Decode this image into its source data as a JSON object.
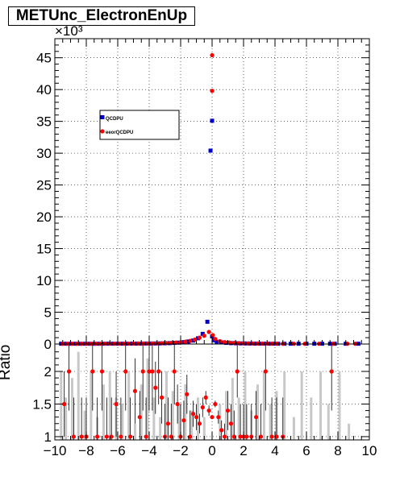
{
  "title": "METUnc_ElectronEnUp",
  "colors": {
    "qcd": "#0000cc",
    "eeor": "#ff0000",
    "ratio_bar": "#c8c8c8",
    "axis": "#000000"
  },
  "chart_data": [
    {
      "type": "scatter",
      "title": "METUnc_ElectronEnUp",
      "exponent_label": "×10³",
      "xlim": [
        -10,
        10
      ],
      "ylim": [
        0,
        48
      ],
      "grid": true,
      "y_ticks": [
        0,
        5,
        10,
        15,
        20,
        25,
        30,
        35,
        40,
        45
      ],
      "legend": {
        "placement": "top-left",
        "entries": [
          "QCDPU",
          "eeorQCDPU"
        ]
      },
      "series": [
        {
          "name": "QCDPU",
          "marker": "square",
          "x": [
            -9.6,
            -9.3,
            -9.0,
            -8.7,
            -8.4,
            -8.1,
            -7.8,
            -7.5,
            -7.2,
            -6.9,
            -6.6,
            -6.3,
            -6.0,
            -5.7,
            -5.4,
            -5.1,
            -4.8,
            -4.5,
            -4.2,
            -3.9,
            -3.6,
            -3.3,
            -3.0,
            -2.7,
            -2.4,
            -2.1,
            -1.8,
            -1.5,
            -1.2,
            -0.9,
            -0.6,
            -0.3,
            -0.1,
            0.0,
            0.0,
            0.1,
            0.3,
            0.6,
            0.9,
            1.2,
            1.5,
            1.8,
            2.1,
            2.4,
            2.7,
            3.0,
            3.3,
            3.6,
            3.9,
            4.2,
            4.6,
            5.0,
            5.5,
            6.0,
            6.5,
            7.0,
            7.5,
            7.8,
            8.5,
            9.3
          ],
          "y": [
            0.05,
            0.05,
            0.05,
            0.05,
            0.05,
            0.05,
            0.05,
            0.05,
            0.05,
            0.05,
            0.06,
            0.06,
            0.06,
            0.06,
            0.06,
            0.07,
            0.07,
            0.07,
            0.08,
            0.08,
            0.09,
            0.1,
            0.12,
            0.14,
            0.18,
            0.22,
            0.3,
            0.4,
            0.55,
            0.9,
            1.6,
            3.5,
            30.4,
            35.1,
            1.2,
            0.6,
            0.35,
            0.25,
            0.18,
            0.14,
            0.12,
            0.1,
            0.09,
            0.08,
            0.07,
            0.07,
            0.06,
            0.06,
            0.06,
            0.05,
            0.05,
            0.05,
            0.05,
            0.05,
            0.05,
            0.05,
            0.05,
            0.05,
            0.05,
            0.05
          ]
        },
        {
          "name": "eeorQCDPU",
          "marker": "circle",
          "x": [
            -9.5,
            -9.2,
            -8.9,
            -8.6,
            -8.3,
            -8.0,
            -7.7,
            -7.4,
            -7.1,
            -6.8,
            -6.5,
            -6.2,
            -5.9,
            -5.6,
            -5.3,
            -5.0,
            -4.7,
            -4.4,
            -4.1,
            -3.8,
            -3.5,
            -3.2,
            -2.9,
            -2.6,
            -2.3,
            -2.0,
            -1.7,
            -1.4,
            -1.1,
            -0.8,
            -0.5,
            -0.2,
            0.0,
            0.0,
            0.05,
            0.2,
            0.5,
            0.8,
            1.1,
            1.4,
            1.7,
            2.0,
            2.3,
            2.6,
            2.9,
            3.2,
            3.5,
            3.8,
            4.1,
            4.5,
            5.2,
            5.9,
            6.8,
            7.7,
            8.6,
            9.1
          ],
          "y": [
            0.05,
            0.05,
            0.05,
            0.05,
            0.05,
            0.05,
            0.05,
            0.05,
            0.05,
            0.06,
            0.06,
            0.06,
            0.06,
            0.06,
            0.07,
            0.07,
            0.08,
            0.08,
            0.09,
            0.1,
            0.11,
            0.13,
            0.15,
            0.18,
            0.22,
            0.28,
            0.36,
            0.5,
            0.7,
            1.0,
            1.3,
            1.9,
            39.8,
            45.4,
            1.4,
            0.8,
            0.45,
            0.3,
            0.22,
            0.17,
            0.14,
            0.12,
            0.1,
            0.09,
            0.08,
            0.07,
            0.07,
            0.06,
            0.06,
            0.05,
            0.05,
            0.05,
            0.05,
            0.05,
            0.05,
            0.05
          ]
        }
      ]
    },
    {
      "type": "scatter",
      "ylabel": "Ratio",
      "xlim": [
        -10,
        10
      ],
      "ylim": [
        0.95,
        2.42
      ],
      "grid": true,
      "x_ticks": [
        -10,
        -8,
        -6,
        -4,
        -2,
        0,
        2,
        4,
        6,
        8,
        10
      ],
      "y_ticks": [
        1,
        1.5,
        2
      ],
      "points": {
        "x": [
          -9.4,
          -9.1,
          -8.8,
          -8.3,
          -8.0,
          -7.6,
          -7.3,
          -7.0,
          -6.7,
          -6.4,
          -6.1,
          -5.8,
          -5.5,
          -5.2,
          -4.9,
          -4.6,
          -4.4,
          -4.2,
          -4.0,
          -3.8,
          -3.6,
          -3.4,
          -3.2,
          -3.0,
          -2.8,
          -2.6,
          -2.4,
          -2.2,
          -2.0,
          -1.8,
          -1.6,
          -1.4,
          -1.2,
          -1.0,
          -0.8,
          -0.6,
          -0.4,
          -0.2,
          0.0,
          0.2,
          0.4,
          0.6,
          0.8,
          1.0,
          1.2,
          1.4,
          1.6,
          1.8,
          2.0,
          2.2,
          2.5,
          2.8,
          3.1,
          3.4,
          3.8,
          4.1,
          4.5,
          7.6
        ],
        "y": [
          1.5,
          2.0,
          1.0,
          1.0,
          1.0,
          2.0,
          1.0,
          2.0,
          1.0,
          1.0,
          1.5,
          1.0,
          2.0,
          1.0,
          1.7,
          1.3,
          2.0,
          1.0,
          2.0,
          2.0,
          1.75,
          2.0,
          1.6,
          1.0,
          1.2,
          1.0,
          2.0,
          1.5,
          1.0,
          1.25,
          1.65,
          1.0,
          1.35,
          1.3,
          1.2,
          1.45,
          1.6,
          1.4,
          1.3,
          1.5,
          1.3,
          1.1,
          1.0,
          1.4,
          1.2,
          1.0,
          2.0,
          1.0,
          1.0,
          1.0,
          1.0,
          1.3,
          1.0,
          2.0,
          1.0,
          1.0,
          1.0,
          2.0
        ],
        "err": [
          0.5,
          0.6,
          0.6,
          0.6,
          0.6,
          0.6,
          0.6,
          0.6,
          0.6,
          0.6,
          0.5,
          0.6,
          0.6,
          0.6,
          0.5,
          0.4,
          0.6,
          0.6,
          0.6,
          0.6,
          0.4,
          0.5,
          0.4,
          0.5,
          0.4,
          0.5,
          0.5,
          0.3,
          0.5,
          0.3,
          0.3,
          0.4,
          0.2,
          0.2,
          0.15,
          0.15,
          0.1,
          0.08,
          0.02,
          0.05,
          0.1,
          0.15,
          0.2,
          0.3,
          0.3,
          0.4,
          0.4,
          0.5,
          0.5,
          0.5,
          0.5,
          0.4,
          0.5,
          0.6,
          0.6,
          0.6,
          0.6,
          0.6
        ]
      },
      "bars": {
        "x": [
          -9.6,
          -9.3,
          -8.9,
          -8.5,
          -8.1,
          -7.7,
          -7.3,
          -6.9,
          -6.5,
          -6.1,
          -5.7,
          -5.3,
          -4.9,
          -4.5,
          -4.1,
          -3.7,
          -3.3,
          -2.9,
          -2.5,
          -2.1,
          -1.7,
          -1.3,
          -0.9,
          -0.5,
          0.5,
          0.9,
          1.3,
          1.7,
          2.1,
          2.5,
          2.9,
          3.3,
          3.7,
          4.1,
          4.6,
          5.2,
          5.7,
          6.3,
          6.9,
          7.4,
          8.1,
          8.7
        ],
        "y": [
          2.0,
          1.6,
          1.9,
          2.3,
          1.4,
          2.0,
          1.3,
          1.8,
          2.0,
          1.6,
          1.5,
          2.0,
          1.2,
          1.8,
          2.2,
          1.6,
          1.3,
          2.0,
          1.7,
          1.5,
          1.8,
          1.4,
          1.6,
          1.3,
          1.5,
          1.7,
          1.9,
          1.6,
          2.0,
          1.4,
          1.8,
          2.0,
          1.5,
          1.7,
          2.0,
          1.3,
          2.0,
          1.6,
          2.0,
          1.5,
          2.0,
          1.2
        ]
      }
    }
  ]
}
